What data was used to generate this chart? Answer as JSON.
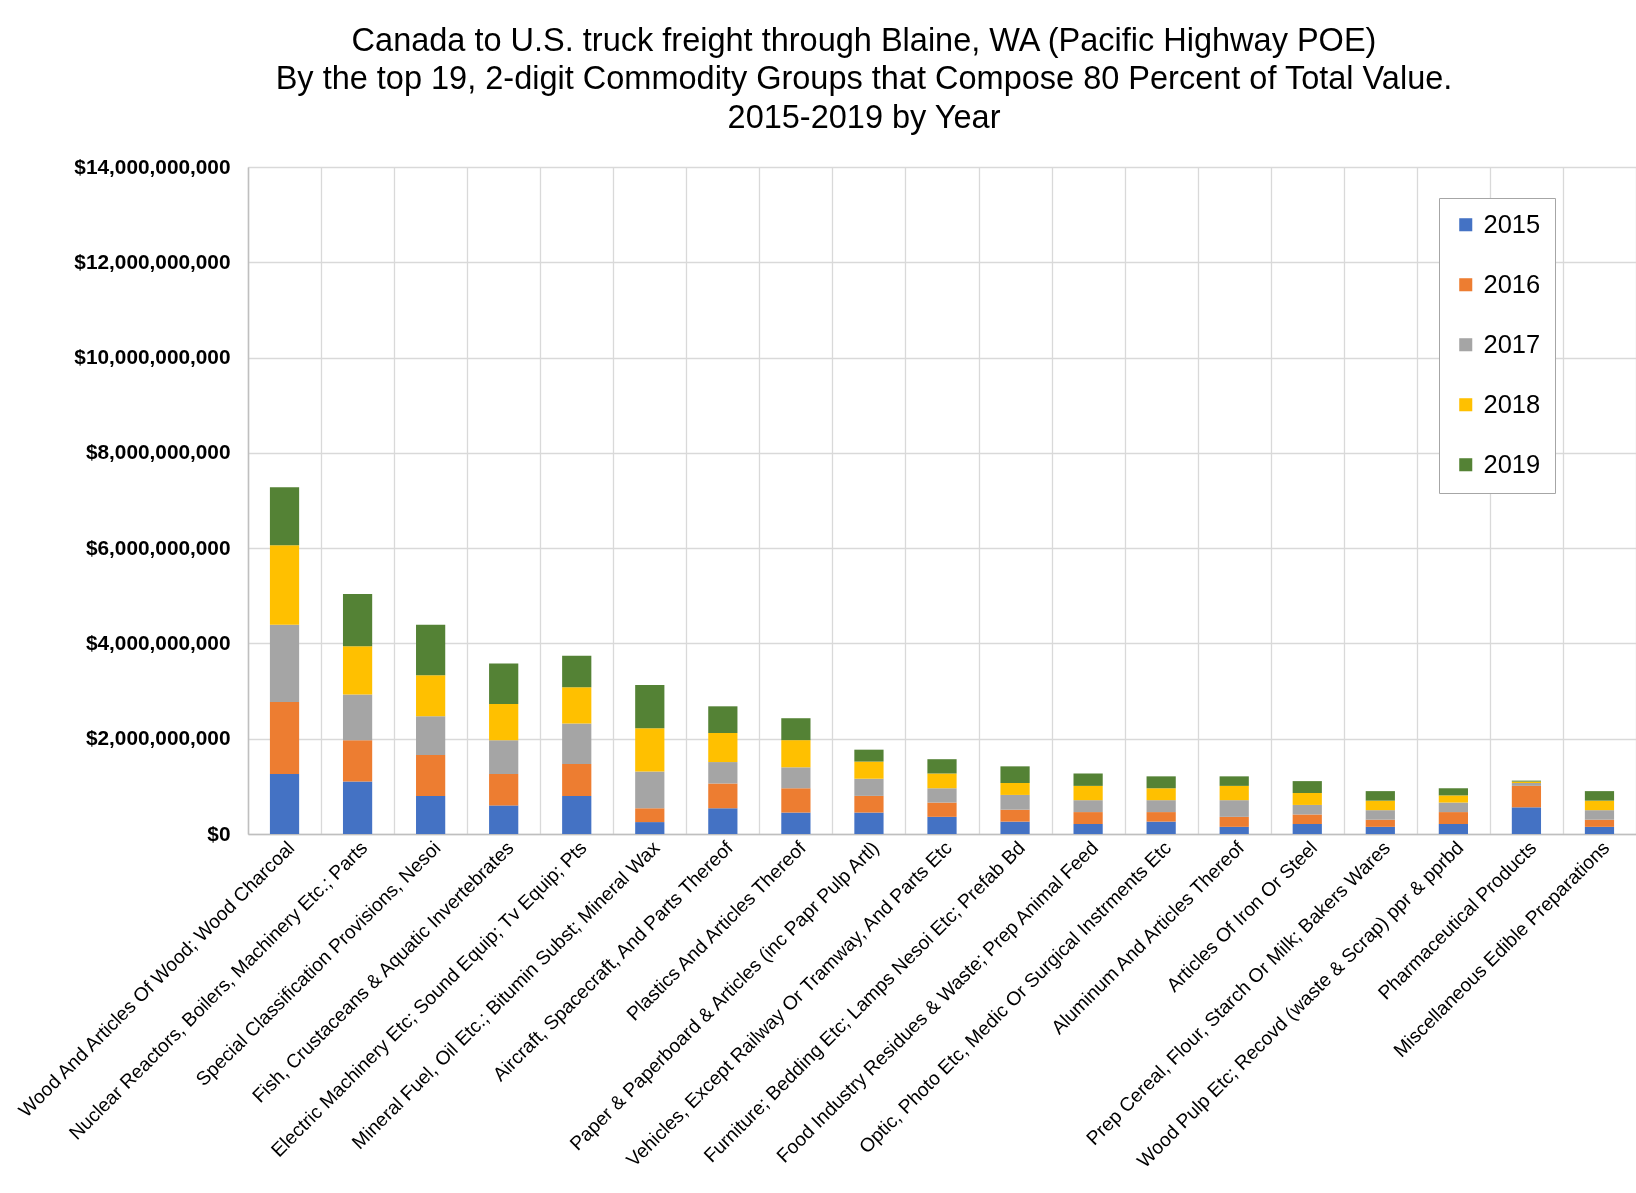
{
  "chart_data": {
    "type": "bar",
    "stacked": true,
    "title": "Canada to U.S. truck freight through Blaine, WA (Pacific Highway POE)\nBy the top 19, 2-digit Commodity Groups that Compose 80 Percent of Total Value.\n2015-2019 by Year",
    "categories": [
      "Wood And Articles Of Wood; Wood Charcoal",
      "Nuclear Reactors, Boilers, Machinery Etc.; Parts",
      "Special Classification Provisions, Nesoi",
      "Fish, Crustaceans & Aquatic Invertebrates",
      "Electric Machinery Etc; Sound Equip; Tv Equip; Pts",
      "Mineral Fuel, Oil Etc.; Bitumin Subst; Mineral Wax",
      "Aircraft, Spacecraft, And Parts Thereof",
      "Plastics And Articles Thereof",
      "Paper & Paperboard & Articles (inc Papr Pulp Artl)",
      "Vehicles, Except Railway Or Tramway, And Parts Etc",
      "Furniture; Bedding Etc; Lamps Nesoi Etc; Prefab Bd",
      "Food Industry Residues & Waste; Prep Animal Feed",
      "Optic, Photo Etc, Medic Or Surgical Instrments Etc",
      "Aluminum And Articles Thereof",
      "Articles Of Iron Or Steel",
      "Prep Cereal, Flour, Starch Or Milk; Bakers Wares",
      "Wood Pulp Etc; Recovd (waste & Scrap) ppr & pprbd",
      "Pharmaceutical Products",
      "Miscellaneous Edible Preparations"
    ],
    "series": [
      {
        "name": "2015",
        "color": "#4472c4",
        "values": [
          1260000000,
          1100000000,
          800000000,
          600000000,
          800000000,
          250000000,
          540000000,
          450000000,
          450000000,
          360000000,
          260000000,
          210000000,
          260000000,
          150000000,
          210000000,
          150000000,
          210000000,
          560000000,
          150000000
        ]
      },
      {
        "name": "2016",
        "color": "#ed7d31",
        "values": [
          1510000000,
          870000000,
          860000000,
          660000000,
          670000000,
          290000000,
          520000000,
          510000000,
          350000000,
          300000000,
          250000000,
          250000000,
          200000000,
          210000000,
          200000000,
          150000000,
          250000000,
          450000000,
          150000000
        ]
      },
      {
        "name": "2017",
        "color": "#a5a5a5",
        "values": [
          1620000000,
          960000000,
          810000000,
          710000000,
          850000000,
          770000000,
          450000000,
          440000000,
          360000000,
          300000000,
          310000000,
          250000000,
          250000000,
          350000000,
          200000000,
          200000000,
          200000000,
          60000000,
          200000000
        ]
      },
      {
        "name": "2018",
        "color": "#ffc000",
        "values": [
          1670000000,
          1010000000,
          860000000,
          760000000,
          760000000,
          910000000,
          610000000,
          570000000,
          360000000,
          310000000,
          250000000,
          300000000,
          250000000,
          300000000,
          250000000,
          200000000,
          150000000,
          30000000,
          200000000
        ]
      },
      {
        "name": "2019",
        "color": "#548235",
        "values": [
          1220000000,
          1100000000,
          1060000000,
          850000000,
          660000000,
          910000000,
          560000000,
          460000000,
          250000000,
          300000000,
          350000000,
          260000000,
          250000000,
          200000000,
          250000000,
          200000000,
          150000000,
          20000000,
          200000000
        ]
      }
    ],
    "ylim": [
      0,
      14000000000
    ],
    "yticks": [
      {
        "value": 0,
        "label": "$0"
      },
      {
        "value": 2000000000,
        "label": "$2,000,000,000"
      },
      {
        "value": 4000000000,
        "label": "$4,000,000,000"
      },
      {
        "value": 6000000000,
        "label": "$6,000,000,000"
      },
      {
        "value": 8000000000,
        "label": "$8,000,000,000"
      },
      {
        "value": 10000000000,
        "label": "$10,000,000,000"
      },
      {
        "value": 12000000000,
        "label": "$12,000,000,000"
      },
      {
        "value": 14000000000,
        "label": "$14,000,000,000"
      }
    ],
    "grid": true,
    "legend": "top right"
  }
}
